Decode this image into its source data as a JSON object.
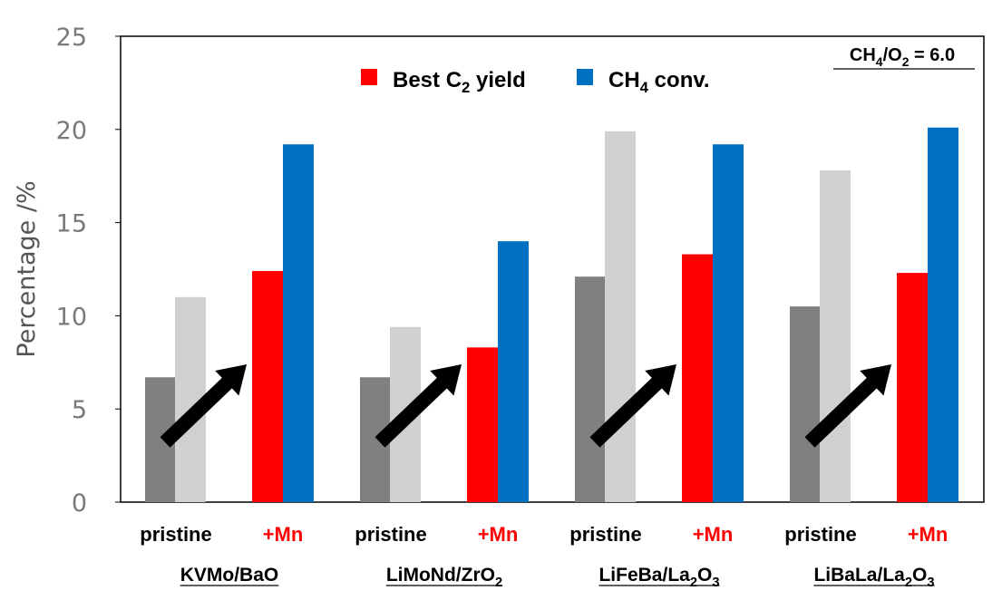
{
  "chart_data": {
    "type": "bar",
    "ylabel": "Percentage /%",
    "ylim": [
      0,
      25
    ],
    "yticks": [
      "0",
      "5",
      "10",
      "15",
      "20",
      "25"
    ],
    "grid": false,
    "legend": {
      "position": "top-center",
      "entries": [
        {
          "text": "Best C",
          "sub": "2",
          "after": " yield",
          "color": "#ff0000"
        },
        {
          "text": "CH",
          "sub": "4",
          "after": " conv.",
          "color": "#0070c0"
        }
      ]
    },
    "annotation": {
      "p1": "CH",
      "s1": "4",
      "p2": "/O",
      "s2": "2",
      "p3": " = 6.0"
    },
    "colors": {
      "pristine_yield": "#808080",
      "pristine_conv": "#d0d0d0",
      "mn_yield": "#ff0000",
      "mn_conv": "#0070c0",
      "arrow": "#000000"
    },
    "subgroup_labels": {
      "pristine": "pristine",
      "mn": "+Mn"
    },
    "groups": [
      {
        "name": {
          "text": "KVMo/BaO",
          "parts": [
            "KVMo/BaO"
          ],
          "subs": []
        },
        "pristine": {
          "yield": 6.7,
          "conv": 11.0
        },
        "mn": {
          "yield": 12.4,
          "conv": 19.2
        }
      },
      {
        "name": {
          "text": "LiMoNd/ZrO2",
          "parts": [
            "LiMoNd/ZrO",
            ""
          ],
          "subs": [
            "2"
          ]
        },
        "pristine": {
          "yield": 6.7,
          "conv": 9.4
        },
        "mn": {
          "yield": 8.3,
          "conv": 14.0
        }
      },
      {
        "name": {
          "text": "LiFeBa/La2O3",
          "parts": [
            "LiFeBa/La",
            "O",
            ""
          ],
          "subs": [
            "2",
            "3"
          ]
        },
        "pristine": {
          "yield": 12.1,
          "conv": 19.9
        },
        "mn": {
          "yield": 13.3,
          "conv": 19.2
        }
      },
      {
        "name": {
          "text": "LiBaLa/La2O3",
          "parts": [
            "LiBaLa/La",
            "O",
            ""
          ],
          "subs": [
            "2",
            "3"
          ]
        },
        "pristine": {
          "yield": 10.5,
          "conv": 17.8
        },
        "mn": {
          "yield": 12.3,
          "conv": 20.1
        }
      }
    ]
  }
}
